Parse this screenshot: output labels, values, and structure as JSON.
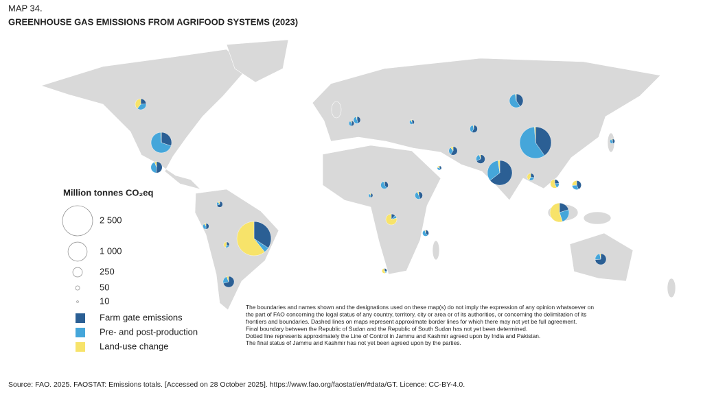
{
  "header": {
    "map_number": "MAP 34.",
    "title": "GREENHOUSE GAS EMISSIONS FROM AGRIFOOD SYSTEMS (2023)"
  },
  "legend": {
    "title": "Million tonnes CO₂eq",
    "sizes": [
      {
        "value": 2500,
        "label": "2 500"
      },
      {
        "value": 1000,
        "label": "1 000"
      },
      250,
      50,
      10
    ],
    "series": [
      {
        "name": "Farm gate emissions",
        "color": "#2b5f94"
      },
      {
        "name": "Pre- and post-production",
        "color": "#45a6da"
      },
      {
        "name": "Land-use change",
        "color": "#f7e36a"
      }
    ]
  },
  "pies": [
    [
      1100,
      160,
      1950
    ],
    [
      1100,
      1600,
      30
    ],
    [
      1080,
      560,
      40
    ],
    [
      350,
      800,
      10
    ],
    [
      200,
      250,
      550
    ],
    [
      210,
      300,
      10
    ],
    [
      250,
      80,
      10
    ],
    [
      240,
      80,
      20
    ],
    [
      80,
      120,
      130
    ],
    [
      180,
      150,
      20
    ],
    [
      40,
      30,
      260
    ],
    [
      150,
      60,
      10
    ],
    [
      120,
      60,
      20
    ],
    [
      100,
      70,
      60
    ],
    [
      50,
      40,
      120
    ],
    [
      70,
      80,
      10
    ],
    [
      60,
      90,
      5
    ],
    [
      90,
      60,
      5
    ],
    [
      60,
      70,
      5
    ],
    [
      40,
      40,
      60
    ],
    [
      70,
      20,
      10
    ],
    [
      30,
      20,
      40
    ],
    [
      50,
      40,
      10
    ],
    [
      40,
      30,
      5
    ],
    [
      30,
      30,
      5
    ],
    [
      40,
      60,
      5
    ],
    [
      20,
      10,
      40
    ],
    [
      30,
      30,
      5
    ],
    [
      20,
      20,
      10
    ],
    [
      25,
      20,
      5
    ]
  ],
  "disclaimer": [
    "The boundaries and names shown and the designations used on these map(s) do not imply the expression of any opinion whatsoever on",
    "the part of FAO concerning the legal status of any country, territory, city or area or of its authorities, or concerning the delimitation of its",
    "frontiers and boundaries. Dashed lines on maps represent approximate border lines for which there may not yet be full agreement.",
    "Final boundary between the Republic of Sudan and the Republic of South Sudan has not yet been determined.",
    "Dotted line represents approximately the Line of Control in Jammu and Kashmir agreed upon by India and Pakistan.",
    "The final status of Jammu and Kashmir has not yet been agreed upon by the parties."
  ],
  "source": "Source: FAO. 2025. FAOSTAT: Emissions totals. [Accessed on 28 October 2025]. https://www.fao.org/faostat/en/#data/GT. Licence: CC-BY-4.0."
}
